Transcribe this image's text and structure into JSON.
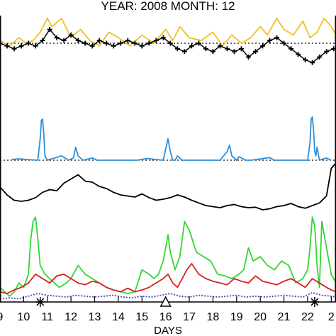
{
  "title": "YEAR: 2008 MONTH: 12",
  "chart_data": {
    "type": "line",
    "title": "YEAR: 2008 MONTH: 12",
    "xlabel": "DAYS",
    "x_ticks": [
      "9",
      "10",
      "11",
      "12",
      "13",
      "14",
      "15",
      "16",
      "17",
      "18",
      "19",
      "20",
      "21",
      "22",
      "2"
    ],
    "xlim": [
      9.0,
      23.2
    ],
    "grid": false,
    "day_markers": [
      {
        "day": 10.7,
        "symbol": "✳",
        "name": "asterisk"
      },
      {
        "day": 16.0,
        "symbol": "△",
        "name": "triangle"
      },
      {
        "day": 22.3,
        "symbol": "✳",
        "name": "asterisk"
      }
    ],
    "panels": [
      {
        "name": "top",
        "ylim": [
          -1.0,
          1.0
        ],
        "reference_line": 0.0,
        "series": [
          {
            "color": "#f0c020",
            "style": "solid",
            "x": [
              9.0,
              9.4,
              9.8,
              10.1,
              10.4,
              10.7,
              11.0,
              11.2,
              11.6,
              12.0,
              12.4,
              12.8,
              13.2,
              13.6,
              14.0,
              14.5,
              15.0,
              15.5,
              16.0,
              16.3,
              16.6,
              17.0,
              17.5,
              18.0,
              18.4,
              18.8,
              19.2,
              19.6,
              20.0,
              20.3,
              20.7,
              21.0,
              21.4,
              21.8,
              22.1,
              22.4,
              22.7,
              23.0,
              23.2
            ],
            "values": [
              0.1,
              -0.1,
              0.2,
              0.0,
              0.1,
              0.4,
              0.9,
              0.6,
              0.9,
              0.2,
              0.5,
              0.1,
              -0.1,
              0.4,
              0.2,
              -0.1,
              0.3,
              0.0,
              0.5,
              0.1,
              0.6,
              0.2,
              0.1,
              0.4,
              -0.1,
              0.3,
              0.0,
              0.2,
              0.6,
              0.3,
              0.9,
              0.5,
              0.3,
              0.8,
              0.2,
              0.4,
              0.9,
              0.6,
              0.3
            ]
          },
          {
            "color": "#000000",
            "style": "plus",
            "x": [
              9.0,
              9.3,
              9.6,
              9.9,
              10.2,
              10.5,
              10.8,
              11.1,
              11.4,
              11.7,
              12.0,
              12.3,
              12.6,
              12.9,
              13.2,
              13.5,
              13.8,
              14.1,
              14.4,
              14.7,
              15.0,
              15.3,
              15.6,
              15.9,
              16.2,
              16.5,
              16.8,
              17.1,
              17.4,
              17.7,
              18.0,
              18.3,
              18.6,
              18.9,
              19.2,
              19.5,
              19.8,
              20.1,
              20.4,
              20.7,
              21.0,
              21.3,
              21.6,
              21.9,
              22.2,
              22.5,
              22.8,
              23.1
            ],
            "values": [
              0.0,
              -0.1,
              -0.2,
              -0.1,
              0.0,
              -0.1,
              0.1,
              0.5,
              0.2,
              0.1,
              0.3,
              0.1,
              0.0,
              -0.1,
              0.1,
              0.0,
              -0.1,
              0.0,
              0.1,
              0.0,
              -0.1,
              0.0,
              0.1,
              0.2,
              0.0,
              -0.2,
              -0.3,
              -0.1,
              0.0,
              -0.2,
              -0.3,
              -0.1,
              -0.2,
              -0.3,
              -0.2,
              -0.5,
              -0.3,
              -0.1,
              0.1,
              0.2,
              0.0,
              -0.2,
              -0.4,
              -0.6,
              -0.7,
              -0.5,
              -0.3,
              -0.2
            ]
          }
        ]
      },
      {
        "name": "middle",
        "ylim": [
          0.0,
          1.0
        ],
        "reference_line": 0.0,
        "series": [
          {
            "color": "#2e8fd8",
            "style": "solid",
            "x": [
              9.5,
              9.6,
              9.7,
              9.8,
              9.9,
              10.0,
              10.6,
              10.7,
              10.75,
              10.8,
              10.85,
              10.9,
              11.0,
              11.6,
              11.9,
              12.1,
              12.2,
              12.3,
              12.5,
              12.9,
              13.1,
              13.5,
              14.8,
              15.2,
              15.9,
              16.1,
              16.2,
              16.3,
              16.4,
              16.5,
              16.6,
              16.7,
              16.8,
              17.0,
              17.3,
              17.5,
              17.9,
              18.3,
              18.6,
              18.7,
              18.8,
              18.9,
              19.0,
              19.1,
              19.4,
              19.6,
              20.4,
              20.6,
              20.9,
              21.7,
              22.0,
              22.1,
              22.15,
              22.2,
              22.25,
              22.3,
              22.35,
              22.4,
              22.5,
              22.8,
              23.0
            ],
            "values": [
              0.02,
              0.02,
              0.03,
              0.03,
              0.03,
              0.02,
              0.0,
              0.5,
              0.92,
              0.95,
              0.6,
              0.1,
              0.0,
              0.1,
              0.0,
              0.05,
              0.3,
              0.1,
              0.0,
              0.05,
              0.0,
              0.0,
              0.0,
              0.04,
              0.0,
              0.5,
              0.2,
              0.0,
              0.0,
              0.1,
              0.05,
              0.0,
              0.0,
              0.0,
              0.0,
              0.0,
              0.0,
              0.0,
              0.2,
              0.35,
              0.1,
              0.05,
              0.0,
              0.08,
              0.0,
              0.0,
              0.06,
              0.0,
              0.0,
              0.0,
              0.0,
              0.4,
              0.95,
              1.0,
              0.7,
              0.2,
              0.1,
              0.3,
              0.0,
              0.05,
              0.0
            ]
          }
        ]
      },
      {
        "name": "lower",
        "ylim": [
          0.0,
          1.0
        ],
        "series": [
          {
            "color": "#000000",
            "style": "solid",
            "x": [
              9.0,
              9.3,
              9.6,
              9.9,
              10.2,
              10.5,
              10.8,
              11.1,
              11.4,
              11.7,
              12.0,
              12.3,
              12.6,
              12.9,
              13.2,
              13.5,
              13.8,
              14.1,
              14.4,
              14.7,
              15.0,
              15.3,
              15.6,
              15.9,
              16.2,
              16.5,
              16.8,
              17.1,
              17.4,
              17.7,
              18.0,
              18.3,
              18.6,
              18.9,
              19.2,
              19.5,
              19.8,
              20.1,
              20.4,
              20.7,
              21.0,
              21.3,
              21.6,
              21.9,
              22.2,
              22.5,
              22.8,
              23.0,
              23.2
            ],
            "values": [
              0.55,
              0.4,
              0.3,
              0.28,
              0.3,
              0.35,
              0.45,
              0.5,
              0.48,
              0.62,
              0.7,
              0.78,
              0.66,
              0.64,
              0.56,
              0.52,
              0.45,
              0.4,
              0.38,
              0.36,
              0.42,
              0.35,
              0.3,
              0.32,
              0.35,
              0.4,
              0.36,
              0.3,
              0.25,
              0.2,
              0.18,
              0.16,
              0.2,
              0.22,
              0.18,
              0.16,
              0.17,
              0.12,
              0.14,
              0.18,
              0.2,
              0.24,
              0.18,
              0.15,
              0.2,
              0.25,
              0.38,
              0.9,
              1.0
            ]
          }
        ]
      },
      {
        "name": "bottom",
        "ylim": [
          0.0,
          1.0
        ],
        "series": [
          {
            "color": "#30d830",
            "style": "solid",
            "x": [
              9.0,
              9.2,
              9.4,
              9.6,
              9.8,
              10.0,
              10.2,
              10.3,
              10.4,
              10.5,
              10.6,
              10.7,
              10.9,
              11.1,
              11.3,
              11.5,
              11.8,
              12.0,
              12.3,
              12.6,
              12.9,
              13.2,
              13.5,
              13.8,
              14.1,
              14.4,
              14.7,
              15.0,
              15.3,
              15.5,
              15.7,
              15.9,
              16.0,
              16.1,
              16.2,
              16.4,
              16.6,
              16.8,
              17.0,
              17.3,
              17.6,
              17.9,
              18.2,
              18.5,
              18.8,
              19.1,
              19.3,
              19.5,
              19.7,
              20.0,
              20.3,
              20.6,
              20.9,
              21.2,
              21.5,
              21.8,
              22.0,
              22.1,
              22.2,
              22.3,
              22.4,
              22.5,
              22.6,
              22.8,
              23.0,
              23.2
            ],
            "values": [
              0.15,
              0.1,
              0.05,
              0.1,
              0.2,
              0.15,
              0.3,
              0.7,
              0.9,
              0.95,
              0.7,
              0.4,
              0.3,
              0.25,
              0.2,
              0.15,
              0.2,
              0.25,
              0.4,
              0.3,
              0.25,
              0.2,
              0.15,
              0.12,
              0.1,
              0.08,
              0.1,
              0.35,
              0.3,
              0.25,
              0.3,
              0.45,
              0.6,
              0.75,
              0.55,
              0.35,
              0.5,
              0.9,
              0.8,
              0.55,
              0.5,
              0.45,
              0.3,
              0.28,
              0.25,
              0.3,
              0.35,
              0.6,
              0.45,
              0.5,
              0.4,
              0.35,
              0.45,
              0.4,
              0.2,
              0.25,
              0.35,
              0.6,
              0.95,
              0.85,
              0.4,
              0.15,
              0.9,
              0.6,
              0.3,
              0.2
            ]
          },
          {
            "color": "#d82020",
            "style": "solid",
            "x": [
              9.0,
              9.3,
              9.6,
              9.9,
              10.2,
              10.5,
              10.8,
              11.1,
              11.4,
              11.7,
              12.0,
              12.3,
              12.6,
              12.9,
              13.2,
              13.5,
              13.8,
              14.1,
              14.4,
              14.7,
              15.0,
              15.3,
              15.6,
              15.9,
              16.1,
              16.3,
              16.5,
              16.7,
              16.9,
              17.1,
              17.4,
              17.7,
              18.0,
              18.3,
              18.6,
              18.9,
              19.2,
              19.5,
              19.8,
              20.1,
              20.4,
              20.7,
              21.0,
              21.3,
              21.6,
              21.9,
              22.2,
              22.5,
              22.8,
              23.0,
              23.2
            ],
            "values": [
              0.1,
              0.08,
              0.12,
              0.15,
              0.2,
              0.3,
              0.25,
              0.2,
              0.28,
              0.3,
              0.25,
              0.2,
              0.18,
              0.22,
              0.2,
              0.15,
              0.12,
              0.1,
              0.14,
              0.1,
              0.12,
              0.15,
              0.2,
              0.25,
              0.3,
              0.2,
              0.15,
              0.25,
              0.35,
              0.42,
              0.3,
              0.25,
              0.22,
              0.2,
              0.18,
              0.25,
              0.22,
              0.2,
              0.28,
              0.22,
              0.2,
              0.18,
              0.22,
              0.25,
              0.2,
              0.15,
              0.25,
              0.2,
              0.15,
              0.12,
              0.1
            ]
          },
          {
            "color": "#5040c0",
            "style": "dotted",
            "x": [
              9.0,
              9.4,
              9.8,
              10.2,
              10.6,
              11.0,
              11.4,
              11.8,
              12.2,
              12.6,
              13.0,
              13.4,
              13.8,
              14.2,
              14.6,
              15.0,
              15.4,
              15.8,
              16.2,
              16.6,
              17.0,
              17.4,
              17.8,
              18.2,
              18.6,
              19.0,
              19.4,
              19.8,
              20.2,
              20.6,
              21.0,
              21.4,
              21.8,
              22.2,
              22.6,
              23.0,
              23.2
            ],
            "values": [
              0.02,
              0.03,
              0.02,
              0.05,
              0.08,
              0.06,
              0.05,
              0.04,
              0.06,
              0.05,
              0.04,
              0.05,
              0.06,
              0.04,
              0.03,
              0.05,
              0.04,
              0.06,
              0.08,
              0.05,
              0.04,
              0.06,
              0.05,
              0.04,
              0.05,
              0.06,
              0.04,
              0.05,
              0.04,
              0.05,
              0.06,
              0.05,
              0.04,
              0.09,
              0.06,
              0.05,
              0.04
            ]
          }
        ]
      }
    ]
  }
}
